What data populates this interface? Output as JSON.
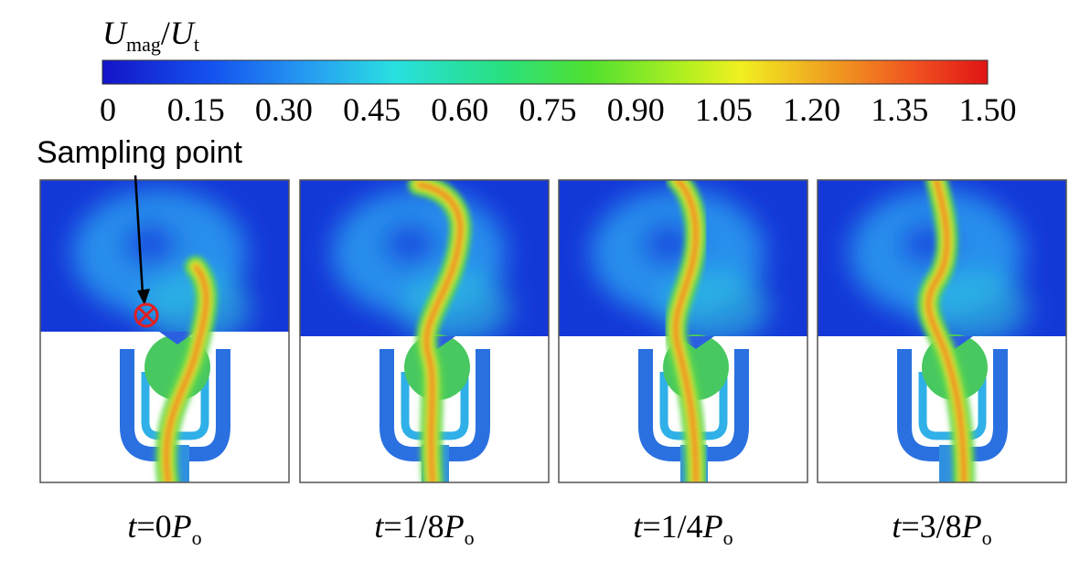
{
  "colorbar": {
    "title": {
      "symbol": "U",
      "subscript": "mag",
      "separator": "/",
      "symbol2": "U",
      "subscript2": "t"
    },
    "ticks": [
      "0",
      "0.15",
      "0.30",
      "0.45",
      "0.60",
      "0.75",
      "0.90",
      "1.05",
      "1.20",
      "1.35",
      "1.50"
    ]
  },
  "annotation": "Sampling point",
  "panels": [
    {
      "label": {
        "var": "t",
        "eq": "=0",
        "symbol": "P",
        "subscript": "o"
      }
    },
    {
      "label": {
        "var": "t",
        "eq": "=1/8",
        "symbol": "P",
        "subscript": "o"
      }
    },
    {
      "label": {
        "var": "t",
        "eq": "=1/4",
        "symbol": "P",
        "subscript": "o"
      }
    },
    {
      "label": {
        "var": "t",
        "eq": "=3/8",
        "symbol": "P",
        "subscript": "o"
      }
    }
  ]
}
